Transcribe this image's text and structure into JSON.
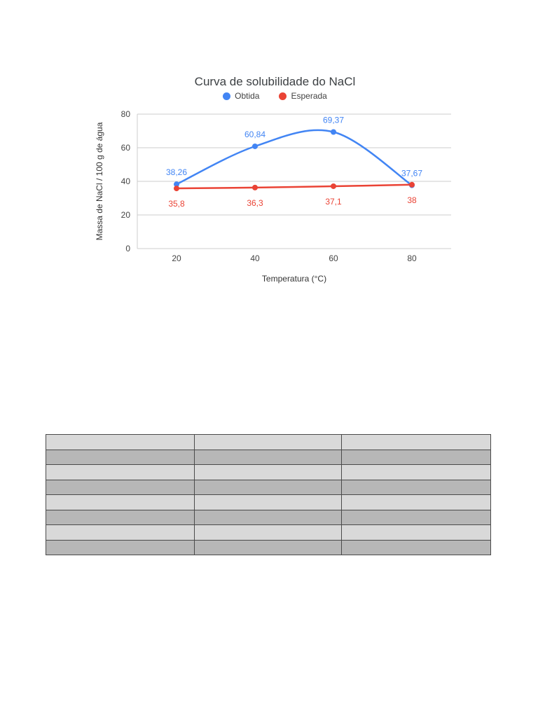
{
  "chart_data": {
    "type": "line",
    "curve": "smooth",
    "title": "Curva de solubilidade do NaCl",
    "xlabel": "Temperatura (°C)",
    "ylabel": "Massa de NaCl / 100 g de água",
    "legend_position": "top",
    "grid": true,
    "x": [
      20,
      40,
      60,
      80
    ],
    "xticks": [
      "20",
      "40",
      "60",
      "80"
    ],
    "yticks": [
      0,
      20,
      40,
      60,
      80
    ],
    "xlim": [
      10,
      90
    ],
    "ylim": [
      0,
      80
    ],
    "gridline_color": "#cccccc",
    "series": [
      {
        "name": "Obtida",
        "color": "#4285f4",
        "values": [
          38.26,
          60.84,
          69.37,
          37.67
        ],
        "labels": [
          "38,26",
          "60,84",
          "69,37",
          "37,67"
        ],
        "label_position": "above"
      },
      {
        "name": "Esperada",
        "color": "#ea4335",
        "values": [
          35.8,
          36.3,
          37.1,
          38
        ],
        "labels": [
          "35,8",
          "36,3",
          "37,1",
          "38"
        ],
        "label_position": "below"
      }
    ]
  },
  "table": {
    "row_count": 8,
    "col_count": 3,
    "cells_empty": true,
    "row_colors": [
      "#d9d9d9",
      "#b7b7b7"
    ],
    "border_color": "#4a4a4a"
  }
}
